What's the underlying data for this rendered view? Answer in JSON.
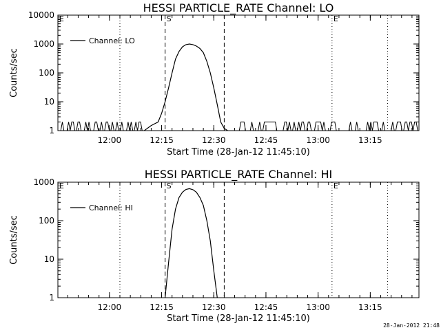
{
  "footer": {
    "stamp": "28-Jan-2012 21:48"
  },
  "chart_data": [
    {
      "type": "line",
      "title": "HESSI PARTICLE_RATE Channel: LO",
      "xlabel": "Start Time (28-Jan-12 11:45:10)",
      "ylabel": "Counts/sec",
      "yscale": "log",
      "ylim": [
        1,
        10000
      ],
      "xlim": [
        "11:45:10",
        "13:29:00"
      ],
      "x_ticks": [
        "12:00",
        "12:15",
        "12:30",
        "12:45",
        "13:00",
        "13:15"
      ],
      "y_ticks": [
        "1",
        "10",
        "100",
        "1000",
        "10000"
      ],
      "legend": {
        "position": "top-left",
        "entries": [
          "Channel: LO"
        ]
      },
      "markers": [
        {
          "label": "E",
          "time": "11:45:10",
          "style": "dotted"
        },
        {
          "label": "",
          "time": "12:03:00",
          "style": "dotted"
        },
        {
          "label": "S",
          "time": "12:16:00",
          "style": "dashed"
        },
        {
          "label": "",
          "time": "12:33:00",
          "style": "dashed"
        },
        {
          "label": "E",
          "time": "13:04:00",
          "style": "dotted"
        },
        {
          "label": "",
          "time": "13:20:00",
          "style": "dotted"
        }
      ],
      "series": [
        {
          "name": "Channel: LO",
          "x": [
            "12:10",
            "12:12",
            "12:14",
            "12:15",
            "12:16",
            "12:17",
            "12:18",
            "12:19",
            "12:20",
            "12:21",
            "12:22",
            "12:23",
            "12:24",
            "12:25",
            "12:26",
            "12:27",
            "12:28",
            "12:29",
            "12:30",
            "12:31",
            "12:32",
            "12:33",
            "12:34"
          ],
          "values": [
            1,
            1.5,
            2,
            4,
            10,
            30,
            100,
            300,
            550,
            800,
            950,
            1000,
            950,
            850,
            700,
            500,
            250,
            100,
            30,
            8,
            2,
            1.2,
            1
          ]
        }
      ],
      "noise": {
        "description_free": true,
        "segments": [
          [
            "11:46",
            "12:10"
          ],
          [
            "12:36",
            "13:29"
          ]
        ],
        "levels": [
          1,
          2
        ]
      }
    },
    {
      "type": "line",
      "title": "HESSI PARTICLE_RATE Channel: HI",
      "xlabel": "Start Time (28-Jan-12 11:45:10)",
      "ylabel": "Counts/sec",
      "yscale": "log",
      "ylim": [
        1,
        1000
      ],
      "xlim": [
        "11:45:10",
        "13:29:00"
      ],
      "x_ticks": [
        "12:00",
        "12:15",
        "12:30",
        "12:45",
        "13:00",
        "13:15"
      ],
      "y_ticks": [
        "1",
        "10",
        "100",
        "1000"
      ],
      "legend": {
        "position": "top-left",
        "entries": [
          "Channel: HI"
        ]
      },
      "markers": [
        {
          "label": "E",
          "time": "11:45:10",
          "style": "dotted"
        },
        {
          "label": "",
          "time": "12:03:00",
          "style": "dotted"
        },
        {
          "label": "S",
          "time": "12:16:00",
          "style": "dashed"
        },
        {
          "label": "",
          "time": "12:33:00",
          "style": "dashed"
        },
        {
          "label": "E",
          "time": "13:04:00",
          "style": "dotted"
        },
        {
          "label": "",
          "time": "13:20:00",
          "style": "dotted"
        }
      ],
      "series": [
        {
          "name": "Channel: HI",
          "x": [
            "12:16",
            "12:17",
            "12:18",
            "12:19",
            "12:20",
            "12:21",
            "12:22",
            "12:23",
            "12:24",
            "12:25",
            "12:26",
            "12:27",
            "12:28",
            "12:29",
            "12:30",
            "12:31"
          ],
          "values": [
            1,
            8,
            60,
            200,
            400,
            550,
            650,
            680,
            640,
            550,
            400,
            250,
            100,
            30,
            5,
            1
          ]
        }
      ]
    }
  ]
}
